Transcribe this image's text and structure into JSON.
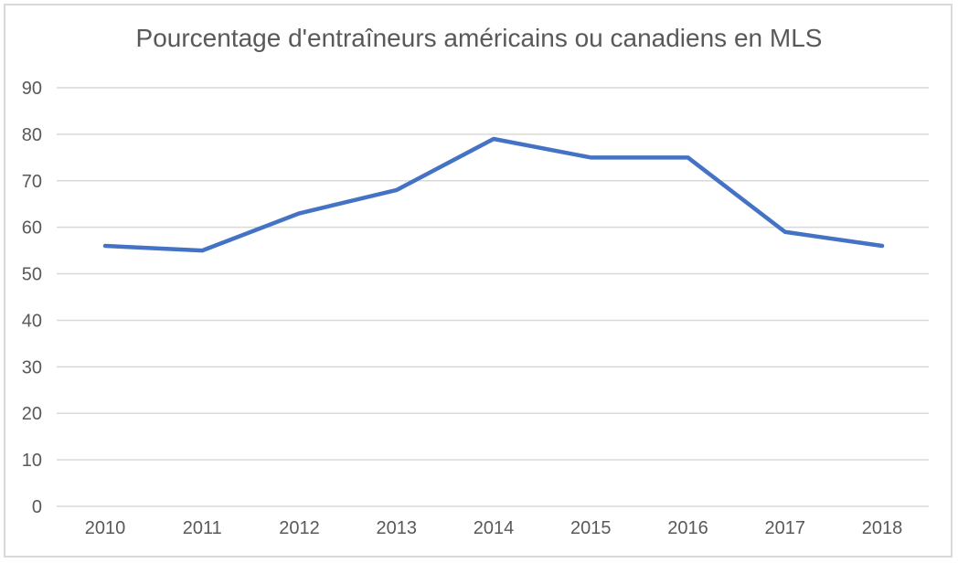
{
  "chart_data": {
    "type": "line",
    "title": "Pourcentage d'entraîneurs américains ou canadiens en MLS",
    "categories": [
      "2010",
      "2011",
      "2012",
      "2013",
      "2014",
      "2015",
      "2016",
      "2017",
      "2018"
    ],
    "series": [
      {
        "name": "Pourcentage d'entraîneurs américains ou canadiens en MLS",
        "values": [
          56,
          55,
          63,
          68,
          79,
          75,
          75,
          59,
          56
        ]
      }
    ],
    "xlabel": "",
    "ylabel": "",
    "ylim": [
      0,
      90
    ],
    "ytick_step": 10,
    "yticks": [
      0,
      10,
      20,
      30,
      40,
      50,
      60,
      70,
      80,
      90
    ],
    "grid": true,
    "legend_visible": false,
    "colors": {
      "line": "#4472C4",
      "gridline": "#D9D9D9",
      "axis_text": "#595959",
      "title_text": "#595959",
      "frame_border": "#D9D9D9",
      "background": "#FFFFFF"
    }
  }
}
